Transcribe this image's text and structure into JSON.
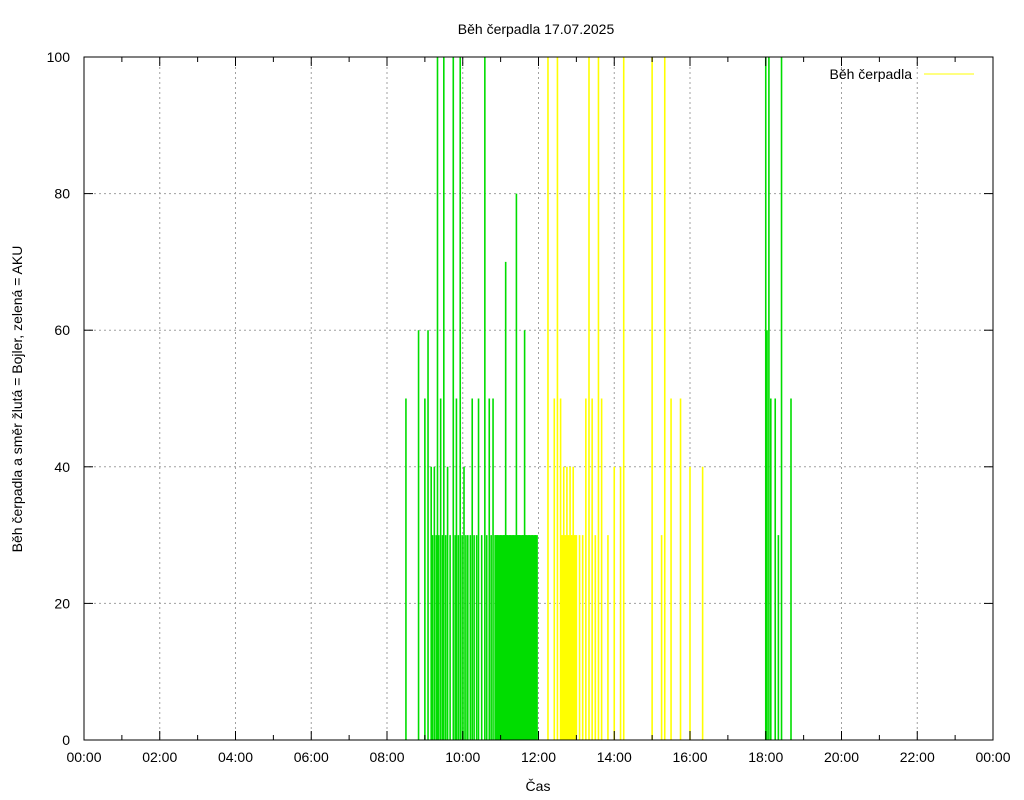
{
  "chart_data": {
    "type": "bar",
    "title": "Běh čerpadla 17.07.2025",
    "xlabel": "Čas",
    "ylabel": "Běh čerpadla a směr žlutá = Bojler, zelená = AKU",
    "xlim": [
      "00:00",
      "24:00"
    ],
    "ylim": [
      0,
      100
    ],
    "grid": true,
    "legend": {
      "position": "top-right"
    },
    "x_ticks": [
      "00:00",
      "02:00",
      "04:00",
      "06:00",
      "08:00",
      "10:00",
      "12:00",
      "14:00",
      "16:00",
      "18:00",
      "20:00",
      "22:00",
      "00:00"
    ],
    "y_ticks": [
      "0",
      "20",
      "40",
      "60",
      "80",
      "100"
    ],
    "series": [
      {
        "name": "Běh čerpadla",
        "color": "#ffff00",
        "values": [
          [
            "12:15",
            100
          ],
          [
            "12:25",
            50
          ],
          [
            "12:30",
            100
          ],
          [
            "12:35",
            50
          ],
          [
            "12:40",
            40
          ],
          [
            "12:45",
            40
          ],
          [
            "12:50",
            40
          ],
          [
            "12:55",
            40
          ],
          [
            "13:00",
            30
          ],
          [
            "13:05",
            30
          ],
          [
            "13:10",
            30
          ],
          [
            "13:15",
            50
          ],
          [
            "13:20",
            100
          ],
          [
            "13:25",
            50
          ],
          [
            "13:30",
            30
          ],
          [
            "13:35",
            100
          ],
          [
            "13:40",
            50
          ],
          [
            "13:50",
            30
          ],
          [
            "14:00",
            40
          ],
          [
            "14:10",
            40
          ],
          [
            "14:15",
            100
          ],
          [
            "15:00",
            100
          ],
          [
            "15:15",
            30
          ],
          [
            "15:20",
            100
          ],
          [
            "15:30",
            50
          ],
          [
            "15:45",
            50
          ],
          [
            "16:00",
            40
          ],
          [
            "16:20",
            40
          ]
        ]
      },
      {
        "name": "AKU",
        "color": "#00dd00",
        "values": [
          [
            "08:30",
            50
          ],
          [
            "08:50",
            60
          ],
          [
            "09:00",
            50
          ],
          [
            "09:05",
            60
          ],
          [
            "09:10",
            40
          ],
          [
            "09:12",
            30
          ],
          [
            "09:15",
            40
          ],
          [
            "09:18",
            30
          ],
          [
            "09:20",
            100
          ],
          [
            "09:22",
            30
          ],
          [
            "09:25",
            50
          ],
          [
            "09:28",
            30
          ],
          [
            "09:30",
            100
          ],
          [
            "09:33",
            30
          ],
          [
            "09:36",
            40
          ],
          [
            "09:40",
            30
          ],
          [
            "09:45",
            100
          ],
          [
            "09:48",
            30
          ],
          [
            "09:50",
            50
          ],
          [
            "09:53",
            30
          ],
          [
            "09:56",
            100
          ],
          [
            "09:59",
            30
          ],
          [
            "10:02",
            40
          ],
          [
            "10:05",
            30
          ],
          [
            "10:08",
            30
          ],
          [
            "10:12",
            30
          ],
          [
            "10:15",
            50
          ],
          [
            "10:18",
            30
          ],
          [
            "10:22",
            30
          ],
          [
            "10:25",
            50
          ],
          [
            "10:30",
            30
          ],
          [
            "10:35",
            100
          ],
          [
            "10:38",
            30
          ],
          [
            "10:42",
            50
          ],
          [
            "10:45",
            30
          ],
          [
            "10:48",
            50
          ],
          [
            "10:52",
            30
          ],
          [
            "10:55",
            30
          ],
          [
            "11:00",
            30
          ],
          [
            "11:05",
            30
          ],
          [
            "11:08",
            70
          ],
          [
            "11:10",
            30
          ],
          [
            "11:15",
            30
          ],
          [
            "11:20",
            30
          ],
          [
            "11:25",
            80
          ],
          [
            "11:28",
            30
          ],
          [
            "11:30",
            30
          ],
          [
            "11:35",
            30
          ],
          [
            "11:38",
            60
          ],
          [
            "11:40",
            30
          ],
          [
            "11:45",
            30
          ],
          [
            "11:50",
            30
          ],
          [
            "11:55",
            30
          ],
          [
            "18:00",
            100
          ],
          [
            "18:02",
            60
          ],
          [
            "18:05",
            100
          ],
          [
            "18:08",
            50
          ],
          [
            "18:15",
            50
          ],
          [
            "18:20",
            30
          ],
          [
            "18:25",
            100
          ],
          [
            "18:40",
            50
          ]
        ]
      }
    ]
  }
}
